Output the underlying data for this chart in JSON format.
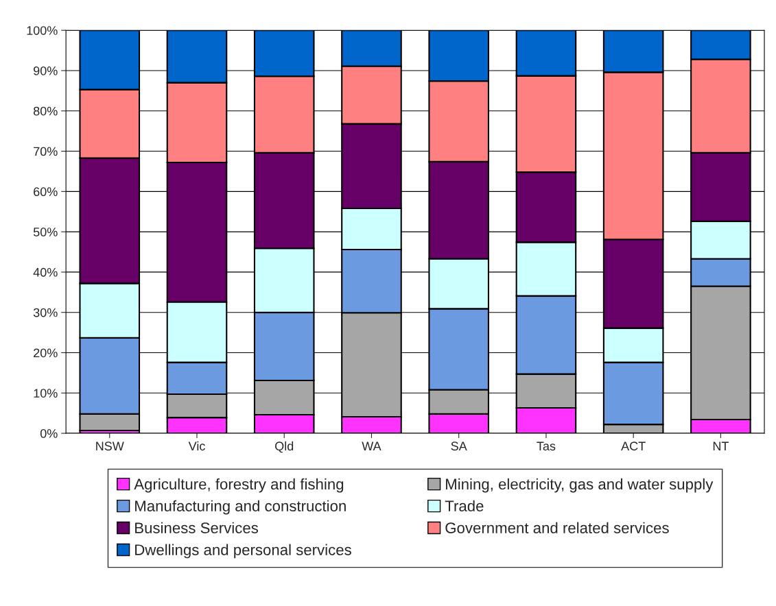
{
  "chart_data": {
    "type": "bar",
    "stacked": true,
    "categories": [
      "NSW",
      "Vic",
      "Qld",
      "WA",
      "SA",
      "Tas",
      "ACT",
      "NT"
    ],
    "series": [
      {
        "name": "Agriculture, forestry and fishing",
        "color": "#ff33ff",
        "values": [
          0.7,
          3.9,
          4.6,
          4.1,
          4.8,
          6.3,
          0,
          3.4
        ]
      },
      {
        "name": "Mining, electricity, gas and water supply",
        "color": "#a6a6a6",
        "values": [
          4.1,
          5.8,
          8.5,
          25.8,
          6.0,
          8.4,
          2.2,
          33.1
        ]
      },
      {
        "name": "Manufacturing and construction",
        "color": "#6b9ae0",
        "values": [
          18.9,
          7.9,
          16.9,
          15.7,
          20.1,
          19.4,
          15.4,
          6.8
        ]
      },
      {
        "name": "Trade",
        "color": "#ccffff",
        "values": [
          13.5,
          15.0,
          15.9,
          10.2,
          12.4,
          13.3,
          8.5,
          9.3
        ]
      },
      {
        "name": "Business Services",
        "color": "#660066",
        "values": [
          31.1,
          34.6,
          23.7,
          21.0,
          24.1,
          17.4,
          22.0,
          17.0
        ]
      },
      {
        "name": "Government and related services",
        "color": "#ff8080",
        "values": [
          17.0,
          19.8,
          19.0,
          14.3,
          20.0,
          23.9,
          41.5,
          23.2
        ]
      },
      {
        "name": "Dwellings and personal services",
        "color": "#0066cc",
        "values": [
          14.7,
          13.0,
          11.4,
          8.9,
          12.6,
          11.3,
          10.4,
          7.2
        ]
      }
    ],
    "ylim": [
      0,
      100
    ],
    "yticks": [
      {
        "value": 0,
        "label": "0%"
      },
      {
        "value": 10,
        "label": "10%"
      },
      {
        "value": 20,
        "label": "20%"
      },
      {
        "value": 30,
        "label": "30%"
      },
      {
        "value": 40,
        "label": "40%"
      },
      {
        "value": 50,
        "label": "50%"
      },
      {
        "value": 60,
        "label": "60%"
      },
      {
        "value": 70,
        "label": "70%"
      },
      {
        "value": 80,
        "label": "80%"
      },
      {
        "value": 90,
        "label": "90%"
      },
      {
        "value": 100,
        "label": "100%"
      }
    ],
    "grid": "y",
    "legend": "bottom"
  }
}
